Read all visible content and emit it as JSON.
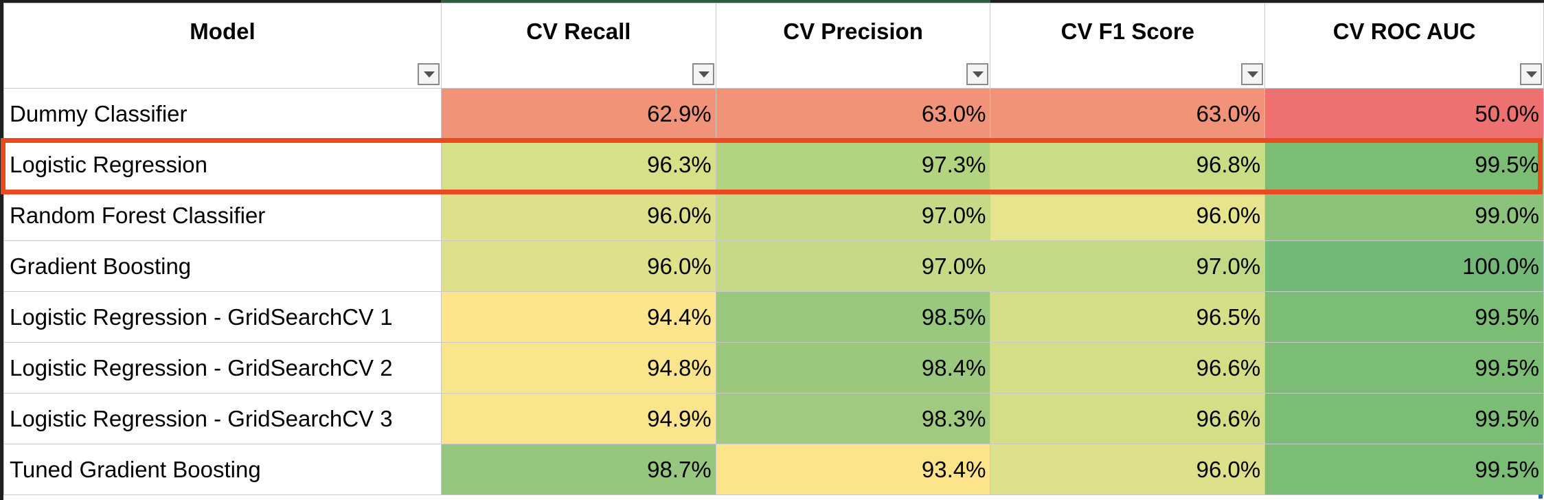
{
  "table": {
    "columns": [
      {
        "label": "Model"
      },
      {
        "label": "CV Recall"
      },
      {
        "label": "CV Precision"
      },
      {
        "label": "CV F1 Score"
      },
      {
        "label": "CV ROC AUC"
      }
    ],
    "rows": [
      {
        "model": "Dummy Classifier",
        "cells": [
          {
            "text": "62.9%",
            "color": "#f19379"
          },
          {
            "text": "63.0%",
            "color": "#f19379"
          },
          {
            "text": "63.0%",
            "color": "#f19379"
          },
          {
            "text": "50.0%",
            "color": "#ec7170"
          }
        ]
      },
      {
        "model": "Logistic Regression",
        "cells": [
          {
            "text": "96.3%",
            "color": "#d6e087"
          },
          {
            "text": "97.3%",
            "color": "#b3d47f"
          },
          {
            "text": "96.8%",
            "color": "#cadd84"
          },
          {
            "text": "99.5%",
            "color": "#7cbd76"
          }
        ]
      },
      {
        "model": "Random Forest Classifier",
        "cells": [
          {
            "text": "96.0%",
            "color": "#dee18a"
          },
          {
            "text": "97.0%",
            "color": "#c6d987"
          },
          {
            "text": "96.0%",
            "color": "#e6e48d"
          },
          {
            "text": "99.0%",
            "color": "#8bc37a"
          }
        ]
      },
      {
        "model": "Gradient Boosting",
        "cells": [
          {
            "text": "96.0%",
            "color": "#dee18a"
          },
          {
            "text": "97.0%",
            "color": "#c6d987"
          },
          {
            "text": "97.0%",
            "color": "#c2d985"
          },
          {
            "text": "100.0%",
            "color": "#72b877"
          }
        ]
      },
      {
        "model": "Logistic Regression - GridSearchCV 1",
        "cells": [
          {
            "text": "94.4%",
            "color": "#fce58c"
          },
          {
            "text": "98.5%",
            "color": "#98c77e"
          },
          {
            "text": "96.5%",
            "color": "#d6df87"
          },
          {
            "text": "99.5%",
            "color": "#7cbd76"
          }
        ]
      },
      {
        "model": "Logistic Regression - GridSearchCV 2",
        "cells": [
          {
            "text": "94.8%",
            "color": "#fbe58c"
          },
          {
            "text": "98.4%",
            "color": "#9cc87e"
          },
          {
            "text": "96.6%",
            "color": "#d3de86"
          },
          {
            "text": "99.5%",
            "color": "#7cbd76"
          }
        ]
      },
      {
        "model": "Logistic Regression - GridSearchCV 3",
        "cells": [
          {
            "text": "94.9%",
            "color": "#fbe58c"
          },
          {
            "text": "98.3%",
            "color": "#a0ca80"
          },
          {
            "text": "96.6%",
            "color": "#d3de86"
          },
          {
            "text": "99.5%",
            "color": "#7cbd76"
          }
        ]
      },
      {
        "model": "Tuned Gradient Boosting",
        "cells": [
          {
            "text": "98.7%",
            "color": "#96c77e"
          },
          {
            "text": "93.4%",
            "color": "#fde48b"
          },
          {
            "text": "96.0%",
            "color": "#dee18a"
          },
          {
            "text": "99.5%",
            "color": "#7cbd76"
          }
        ]
      }
    ],
    "highlighted_row": "Logistic Regression",
    "highlight_color": "#ea4a1f"
  }
}
